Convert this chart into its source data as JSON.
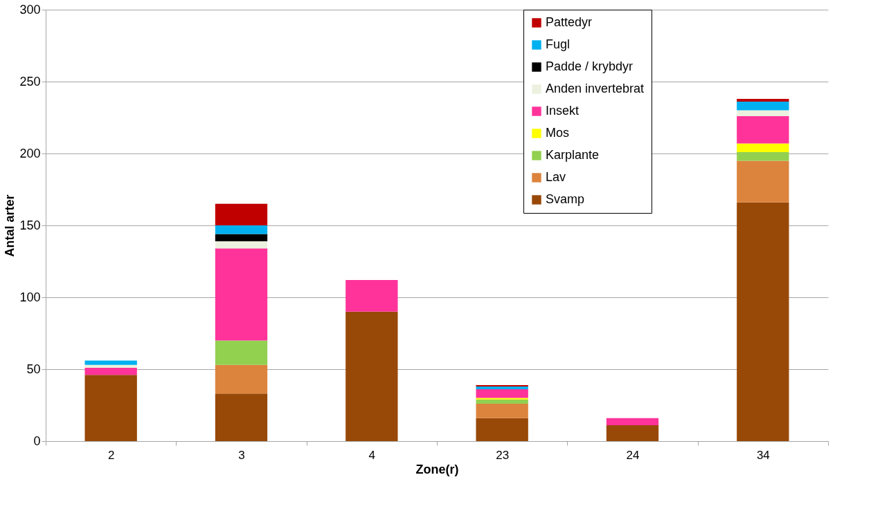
{
  "chart_data": {
    "type": "bar",
    "stacked": true,
    "xlabel": "Zone(r)",
    "ylabel": "Antal arter",
    "categories": [
      "2",
      "3",
      "4",
      "23",
      "24",
      "34"
    ],
    "series": [
      {
        "name": "Svamp",
        "color": "#984807",
        "values": [
          46,
          33,
          90,
          16,
          11,
          166
        ]
      },
      {
        "name": "Lav",
        "color": "#dc843d",
        "values": [
          0,
          20,
          0,
          10,
          0,
          29
        ]
      },
      {
        "name": "Karplante",
        "color": "#92d050",
        "values": [
          0,
          17,
          0,
          3,
          0,
          6
        ]
      },
      {
        "name": "Mos",
        "color": "#ffff00",
        "values": [
          0,
          0,
          0,
          1,
          0,
          6
        ]
      },
      {
        "name": "Insekt",
        "color": "#ff3399",
        "values": [
          5,
          64,
          22,
          6,
          5,
          19
        ]
      },
      {
        "name": "Anden invertebrat",
        "color": "#ebf1de",
        "values": [
          2,
          5,
          0,
          0,
          0,
          4
        ]
      },
      {
        "name": "Padde / krybdyr",
        "color": "#000000",
        "values": [
          0,
          5,
          0,
          0,
          0,
          0
        ]
      },
      {
        "name": "Fugl",
        "color": "#00b0f0",
        "values": [
          3,
          6,
          0,
          2,
          0,
          6
        ]
      },
      {
        "name": "Pattedyr",
        "color": "#c00000",
        "values": [
          0,
          15,
          0,
          1,
          0,
          2
        ]
      }
    ],
    "ylim": [
      0,
      300
    ],
    "yticks": [
      0,
      50,
      100,
      150,
      200,
      250,
      300
    ],
    "grid": "y",
    "legend": "top right"
  }
}
